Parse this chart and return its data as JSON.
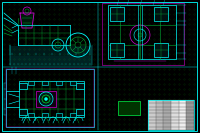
{
  "bg_color": "#000000",
  "cyan": "#00ffff",
  "green": "#00aa33",
  "bright_green": "#00ff44",
  "magenta": "#cc00cc",
  "yellow": "#cccc00",
  "white": "#ffffff",
  "gray": "#888888",
  "dark_green": "#003300",
  "dot_color": "#003300",
  "fig_width": 2.0,
  "fig_height": 1.33,
  "dpi": 100
}
